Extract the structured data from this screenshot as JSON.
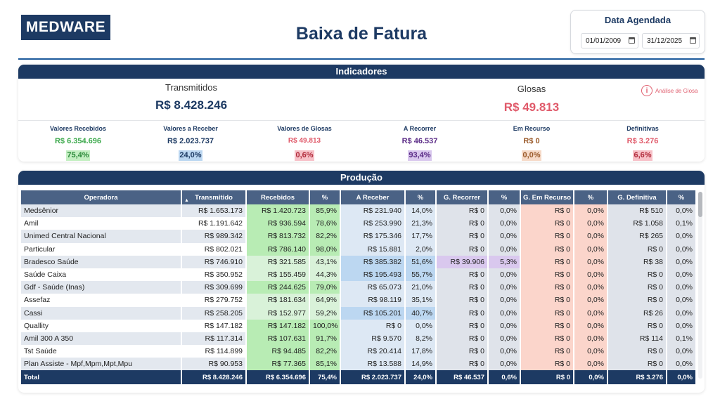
{
  "header": {
    "logo": "MEDWARE",
    "title": "Baixa de Fatura",
    "date_title": "Data Agendada",
    "date_start": "01/01/2009",
    "date_end": "31/12/2025"
  },
  "indicadores": {
    "title": "Indicadores",
    "transmitidos_label": "Transmitidos",
    "transmitidos_value": "R$ 8.428.246",
    "glosas_label": "Glosas",
    "glosas_value": "R$ 49.813",
    "analise_link": "Análise de Glosa",
    "kpis": [
      {
        "label": "Valores Recebidos",
        "value": "R$ 6.354.696",
        "pct": "75,4%"
      },
      {
        "label": "Valores a Receber",
        "value": "R$ 2.023.737",
        "pct": "24,0%"
      },
      {
        "label": "Valores de Glosas",
        "value": "R$ 49.813",
        "pct": "0,6%"
      },
      {
        "label": "A Recorrer",
        "value": "R$ 46.537",
        "pct": "93,4%"
      },
      {
        "label": "Em Recurso",
        "value": "R$ 0",
        "pct": "0,0%"
      },
      {
        "label": "Definitivas",
        "value": "R$ 3.276",
        "pct": "6,6%"
      }
    ]
  },
  "producao": {
    "title": "Produção",
    "columns": [
      "Operadora",
      "Transmitido",
      "Recebidos",
      "%",
      "A Receber",
      "%",
      "G. Recorrer",
      "%",
      "G. Em Recurso",
      "%",
      "G. Definitiva",
      "%"
    ],
    "rows": [
      [
        "Medsênior",
        "R$ 1.653.173",
        "R$ 1.420.723",
        "85,9%",
        "R$ 231.940",
        "14,0%",
        "R$ 0",
        "0,0%",
        "R$ 0",
        "0,0%",
        "R$ 510",
        "0,0%"
      ],
      [
        "Amil",
        "R$ 1.191.642",
        "R$ 936.594",
        "78,6%",
        "R$ 253.990",
        "21,3%",
        "R$ 0",
        "0,0%",
        "R$ 0",
        "0,0%",
        "R$ 1.058",
        "0,1%"
      ],
      [
        "Unimed Central Nacional",
        "R$ 989.342",
        "R$ 813.732",
        "82,2%",
        "R$ 175.346",
        "17,7%",
        "R$ 0",
        "0,0%",
        "R$ 0",
        "0,0%",
        "R$ 265",
        "0,0%"
      ],
      [
        "Particular",
        "R$ 802.021",
        "R$ 786.140",
        "98,0%",
        "R$ 15.881",
        "2,0%",
        "R$ 0",
        "0,0%",
        "R$ 0",
        "0,0%",
        "R$ 0",
        "0,0%"
      ],
      [
        "Bradesco Saúde",
        "R$ 746.910",
        "R$ 321.585",
        "43,1%",
        "R$ 385.382",
        "51,6%",
        "R$ 39.906",
        "5,3%",
        "R$ 0",
        "0,0%",
        "R$ 38",
        "0,0%"
      ],
      [
        "Saúde Caixa",
        "R$ 350.952",
        "R$ 155.459",
        "44,3%",
        "R$ 195.493",
        "55,7%",
        "R$ 0",
        "0,0%",
        "R$ 0",
        "0,0%",
        "R$ 0",
        "0,0%"
      ],
      [
        "Gdf - Saúde (Inas)",
        "R$ 309.699",
        "R$ 244.625",
        "79,0%",
        "R$ 65.073",
        "21,0%",
        "R$ 0",
        "0,0%",
        "R$ 0",
        "0,0%",
        "R$ 0",
        "0,0%"
      ],
      [
        "Assefaz",
        "R$ 279.752",
        "R$ 181.634",
        "64,9%",
        "R$ 98.119",
        "35,1%",
        "R$ 0",
        "0,0%",
        "R$ 0",
        "0,0%",
        "R$ 0",
        "0,0%"
      ],
      [
        "Cassi",
        "R$ 258.205",
        "R$ 152.977",
        "59,2%",
        "R$ 105.201",
        "40,7%",
        "R$ 0",
        "0,0%",
        "R$ 0",
        "0,0%",
        "R$ 26",
        "0,0%"
      ],
      [
        "Quallity",
        "R$ 147.182",
        "R$ 147.182",
        "100,0%",
        "R$ 0",
        "0,0%",
        "R$ 0",
        "0,0%",
        "R$ 0",
        "0,0%",
        "R$ 0",
        "0,0%"
      ],
      [
        "Amil 300 A 350",
        "R$ 117.314",
        "R$ 107.631",
        "91,7%",
        "R$ 9.570",
        "8,2%",
        "R$ 0",
        "0,0%",
        "R$ 0",
        "0,0%",
        "R$ 114",
        "0,1%"
      ],
      [
        "Tst Saúde",
        "R$ 114.899",
        "R$ 94.485",
        "82,2%",
        "R$ 20.414",
        "17,8%",
        "R$ 0",
        "0,0%",
        "R$ 0",
        "0,0%",
        "R$ 0",
        "0,0%"
      ],
      [
        "Plan Assiste - Mpf,Mpm,Mpt,Mpu",
        "R$ 90.953",
        "R$ 77.365",
        "85,1%",
        "R$ 13.588",
        "14,9%",
        "R$ 0",
        "0,0%",
        "R$ 0",
        "0,0%",
        "R$ 0",
        "0,0%"
      ]
    ],
    "total": [
      "Total",
      "R$ 8.428.246",
      "R$ 6.354.696",
      "75,4%",
      "R$ 2.023.737",
      "24,0%",
      "R$ 46.537",
      "0,6%",
      "R$ 0",
      "0,0%",
      "R$ 3.276",
      "0,0%"
    ]
  },
  "colors": {
    "navy": "#1d3a63",
    "green": "#3aa84a",
    "red": "#e05a6a",
    "purple": "#5a2a86",
    "brown": "#9a5a2a"
  }
}
